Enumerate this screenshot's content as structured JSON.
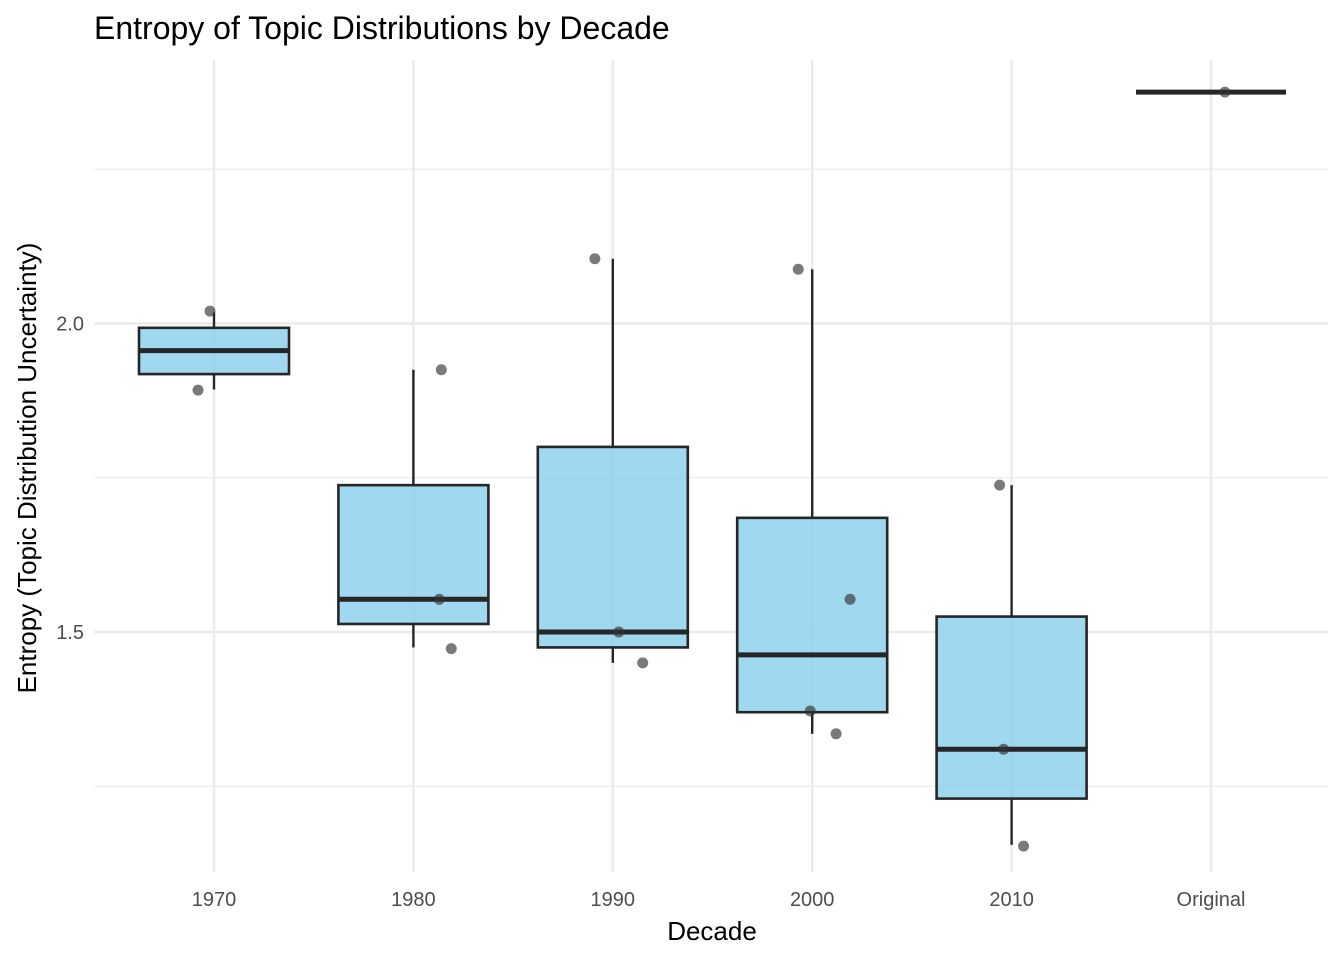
{
  "chart_data": {
    "type": "boxplot",
    "title": "Entropy of Topic Distributions by Decade",
    "xlabel": "Decade",
    "ylabel": "Entropy (Topic Distribution Uncertainty)",
    "categories": [
      "1970",
      "1980",
      "1990",
      "2000",
      "2010",
      "Original"
    ],
    "y_ticks": [
      "1.5",
      "2.0"
    ],
    "y_tick_values": [
      1.5,
      2.0
    ],
    "ylim": [
      1.1,
      2.52
    ],
    "grid": true,
    "colors": {
      "box_fill": "#87CEEB",
      "box_stroke": "#262626",
      "point": "#333333",
      "grid": "#ebebeb"
    },
    "boxes": [
      {
        "category": "1970",
        "lower_whisker": 1.893,
        "q1": 1.918,
        "median": 1.956,
        "q3": 1.993,
        "upper_whisker": 2.018
      },
      {
        "category": "1980",
        "lower_whisker": 1.475,
        "q1": 1.513,
        "median": 1.553,
        "q3": 1.738,
        "upper_whisker": 1.925
      },
      {
        "category": "1990",
        "lower_whisker": 1.45,
        "q1": 1.475,
        "median": 1.5,
        "q3": 1.8,
        "upper_whisker": 2.105
      },
      {
        "category": "2000",
        "lower_whisker": 1.335,
        "q1": 1.37,
        "median": 1.463,
        "q3": 1.685,
        "upper_whisker": 2.088
      },
      {
        "category": "2010",
        "lower_whisker": 1.155,
        "q1": 1.23,
        "median": 1.31,
        "q3": 1.525,
        "upper_whisker": 1.738
      },
      {
        "category": "Original",
        "lower_whisker": 2.375,
        "q1": 2.375,
        "median": 2.375,
        "q3": 2.375,
        "upper_whisker": 2.375
      }
    ],
    "points": [
      {
        "category": "1970",
        "jitter": -0.08,
        "y": 1.892
      },
      {
        "category": "1970",
        "jitter": -0.02,
        "y": 2.02
      },
      {
        "category": "1980",
        "jitter": 0.14,
        "y": 1.925
      },
      {
        "category": "1980",
        "jitter": 0.13,
        "y": 1.553
      },
      {
        "category": "1980",
        "jitter": 0.19,
        "y": 1.473
      },
      {
        "category": "1990",
        "jitter": -0.09,
        "y": 2.105
      },
      {
        "category": "1990",
        "jitter": 0.03,
        "y": 1.5
      },
      {
        "category": "1990",
        "jitter": 0.15,
        "y": 1.45
      },
      {
        "category": "2000",
        "jitter": -0.07,
        "y": 2.088
      },
      {
        "category": "2000",
        "jitter": 0.19,
        "y": 1.553
      },
      {
        "category": "2000",
        "jitter": -0.01,
        "y": 1.372
      },
      {
        "category": "2000",
        "jitter": 0.12,
        "y": 1.335
      },
      {
        "category": "2010",
        "jitter": -0.06,
        "y": 1.738
      },
      {
        "category": "2010",
        "jitter": -0.04,
        "y": 1.31
      },
      {
        "category": "2010",
        "jitter": 0.06,
        "y": 1.153
      },
      {
        "category": "Original",
        "jitter": 0.07,
        "y": 2.375
      }
    ]
  }
}
